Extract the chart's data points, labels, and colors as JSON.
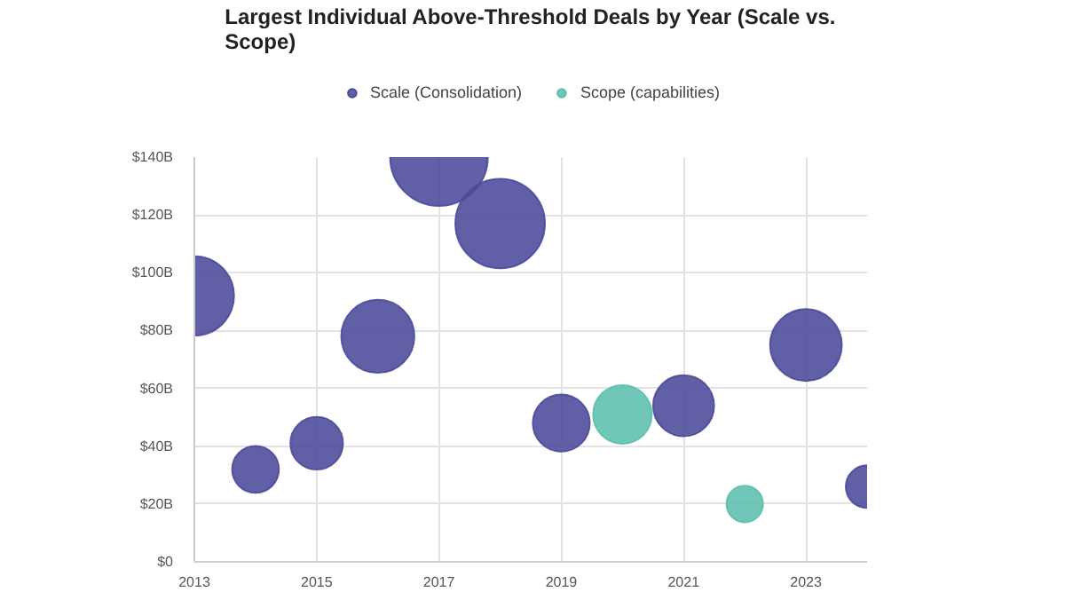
{
  "chart_data": {
    "type": "bubble",
    "title": "Largest Individual Above-Threshold Deals by Year (Scale vs. Scope)",
    "series": [
      {
        "name": "Scale (Consolidation)",
        "color": "#4b4a9b",
        "x": [
          2013,
          2014,
          2015,
          2016,
          2017,
          2018,
          2019,
          2021,
          2023,
          2024
        ],
        "values": [
          92,
          32,
          41,
          78,
          140,
          117,
          48,
          54,
          75,
          26
        ],
        "sizes": [
          0.66,
          0.23,
          0.29,
          0.56,
          1,
          0.84,
          0.34,
          0.39,
          0.54,
          0.19
        ]
      },
      {
        "name": "Scope (capabilities)",
        "color": "#5cbfad",
        "x": [
          2020,
          2022
        ],
        "values": [
          51,
          20
        ],
        "sizes": [
          0.36,
          0.14
        ]
      }
    ],
    "xlim": [
      2013,
      2024
    ],
    "xticks": [
      2013,
      2015,
      2017,
      2019,
      2021,
      2023
    ],
    "ylim": [
      0,
      140
    ],
    "yticks": [
      {
        "value": 0,
        "label": "$0"
      },
      {
        "value": 20,
        "label": "$20B"
      },
      {
        "value": 40,
        "label": "$40B"
      },
      {
        "value": 60,
        "label": "$60B"
      },
      {
        "value": 80,
        "label": "$80B"
      },
      {
        "value": 100,
        "label": "$100B"
      },
      {
        "value": 120,
        "label": "$120B"
      },
      {
        "value": 140,
        "label": "$140B"
      }
    ],
    "grid": true,
    "legend": "top",
    "marker": "circle"
  }
}
